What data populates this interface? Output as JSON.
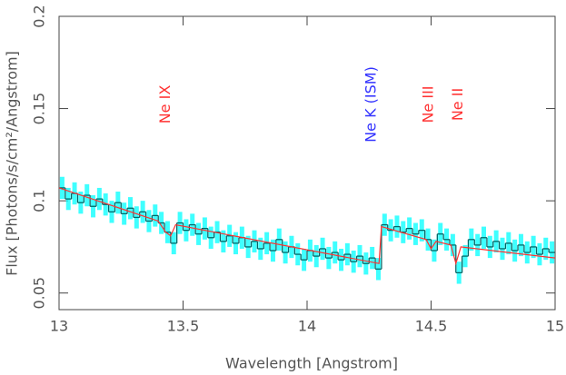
{
  "chart_data": {
    "type": "spectrum",
    "x_label": "Wavelength [Angstrom]",
    "y_label": "Flux [Photons/s/cm²/Angstrom]",
    "xlim": [
      13,
      15
    ],
    "xticks": [
      13,
      13.5,
      14,
      14.5,
      15
    ],
    "ylim": [
      0.041,
      0.2
    ],
    "yticks": [
      0.05,
      0.1,
      0.15,
      0.2
    ],
    "data": {
      "color": "#006666",
      "error_color": "#00ffff",
      "error": 0.006,
      "x": [
        13.0,
        13.025,
        13.05,
        13.075,
        13.1,
        13.125,
        13.15,
        13.175,
        13.2,
        13.225,
        13.25,
        13.275,
        13.3,
        13.325,
        13.35,
        13.375,
        13.4,
        13.425,
        13.45,
        13.475,
        13.5,
        13.525,
        13.55,
        13.575,
        13.6,
        13.625,
        13.65,
        13.675,
        13.7,
        13.725,
        13.75,
        13.775,
        13.8,
        13.825,
        13.85,
        13.875,
        13.9,
        13.925,
        13.95,
        13.975,
        14.0,
        14.025,
        14.05,
        14.075,
        14.1,
        14.125,
        14.15,
        14.175,
        14.2,
        14.225,
        14.25,
        14.275,
        14.3,
        14.325,
        14.35,
        14.375,
        14.4,
        14.425,
        14.45,
        14.475,
        14.5,
        14.525,
        14.55,
        14.575,
        14.6,
        14.625,
        14.65,
        14.675,
        14.7,
        14.725,
        14.75,
        14.775,
        14.8,
        14.825,
        14.85,
        14.875,
        14.9,
        14.925,
        14.95,
        14.975
      ],
      "values": [
        0.107,
        0.101,
        0.104,
        0.099,
        0.103,
        0.097,
        0.101,
        0.098,
        0.094,
        0.099,
        0.093,
        0.096,
        0.091,
        0.094,
        0.089,
        0.092,
        0.088,
        0.083,
        0.077,
        0.088,
        0.084,
        0.087,
        0.082,
        0.085,
        0.08,
        0.083,
        0.078,
        0.081,
        0.077,
        0.08,
        0.075,
        0.078,
        0.074,
        0.077,
        0.073,
        0.079,
        0.072,
        0.075,
        0.071,
        0.068,
        0.073,
        0.07,
        0.074,
        0.069,
        0.072,
        0.068,
        0.071,
        0.067,
        0.07,
        0.066,
        0.069,
        0.063,
        0.087,
        0.084,
        0.086,
        0.083,
        0.085,
        0.082,
        0.084,
        0.079,
        0.073,
        0.082,
        0.079,
        0.076,
        0.061,
        0.07,
        0.079,
        0.076,
        0.08,
        0.075,
        0.078,
        0.074,
        0.077,
        0.073,
        0.076,
        0.072,
        0.075,
        0.071,
        0.074,
        0.072
      ]
    },
    "model": {
      "color": "#ff3030",
      "x": [
        13,
        13.4,
        13.43,
        13.45,
        13.47,
        14.29,
        14.3,
        14.48,
        14.5,
        14.52,
        14.58,
        14.6,
        14.62,
        15
      ],
      "values": [
        0.107,
        0.089,
        0.083,
        0.081,
        0.087,
        0.066,
        0.086,
        0.079,
        0.074,
        0.078,
        0.076,
        0.066,
        0.075,
        0.069
      ]
    },
    "annotations": [
      {
        "text": "Ne IX",
        "x": 13.43,
        "color": "#ff3333"
      },
      {
        "text": "Ne K (ISM)",
        "x": 14.26,
        "color": "#3333ff"
      },
      {
        "text": "Ne III",
        "x": 14.49,
        "color": "#ff3333"
      },
      {
        "text": "Ne II",
        "x": 14.61,
        "color": "#ff3333"
      }
    ]
  }
}
